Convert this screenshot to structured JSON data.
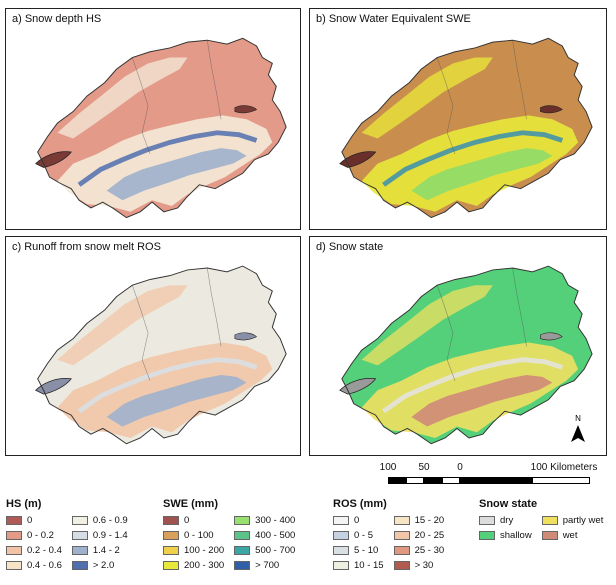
{
  "panels": [
    {
      "title": "a) Snow depth HS"
    },
    {
      "title": "b) Snow Water Equivalent SWE"
    },
    {
      "title": "c) Runoff from snow melt ROS"
    },
    {
      "title": "d) Snow state"
    }
  ],
  "north_arrow": {
    "label": "N"
  },
  "scalebar": {
    "labels": [
      "100",
      "50",
      "0",
      "100 Kilometers"
    ],
    "values_km": [
      100,
      50,
      0,
      100
    ]
  },
  "legends": {
    "hs": {
      "title": "HS (m)",
      "items": [
        {
          "label": "0",
          "color": "#b05a58"
        },
        {
          "label": "0 - 0.2",
          "color": "#e59a88"
        },
        {
          "label": "0.2 - 0.4",
          "color": "#f2c3a6"
        },
        {
          "label": "0.4 - 0.6",
          "color": "#f7e4c6"
        },
        {
          "label": "0.6 - 0.9",
          "color": "#f2f0e2"
        },
        {
          "label": "0.9 - 1.4",
          "color": "#d7dde6"
        },
        {
          "label": "1.4 - 2",
          "color": "#9fb1cc"
        },
        {
          "label": "> 2.0",
          "color": "#4f6fae"
        }
      ]
    },
    "swe": {
      "title": "SWE (mm)",
      "items": [
        {
          "label": "0",
          "color": "#a0524e"
        },
        {
          "label": "0 - 100",
          "color": "#d9a05a"
        },
        {
          "label": "100 - 200",
          "color": "#f0d048"
        },
        {
          "label": "200 - 300",
          "color": "#e8e83a"
        },
        {
          "label": "300 - 400",
          "color": "#98e070"
        },
        {
          "label": "400 - 500",
          "color": "#5cc48a"
        },
        {
          "label": "500 - 700",
          "color": "#3aa6a6"
        },
        {
          "label": "> 700",
          "color": "#2f5fa8"
        }
      ]
    },
    "ros": {
      "title": "ROS (mm)",
      "items": [
        {
          "label": "0",
          "color": "#f4f4f4"
        },
        {
          "label": "0 - 5",
          "color": "#c6d2e2"
        },
        {
          "label": "5 - 10",
          "color": "#d8e0e4"
        },
        {
          "label": "10 - 15",
          "color": "#eef0e0"
        },
        {
          "label": "15 - 20",
          "color": "#f7e6c6"
        },
        {
          "label": "20 - 25",
          "color": "#f2c6a8"
        },
        {
          "label": "25 - 30",
          "color": "#e09880"
        },
        {
          "label": "> 30",
          "color": "#b05a50"
        }
      ]
    },
    "state": {
      "title": "Snow state",
      "items": [
        {
          "label": "dry",
          "color": "#dcdcdc"
        },
        {
          "label": "shallow",
          "color": "#55d07a"
        },
        {
          "label": "partly wet",
          "color": "#f0e060"
        },
        {
          "label": "wet",
          "color": "#d08a78"
        }
      ]
    }
  },
  "map_colors": {
    "hs": {
      "base": "#e49a88",
      "mid": "#f4ead8",
      "high": "#9fb1cc",
      "peak": "#4f6fae",
      "lake": "#7a3a36"
    },
    "swe": {
      "base": "#c98e4e",
      "mid": "#e8e83a",
      "high": "#8edc6a",
      "peak": "#3a8fb0",
      "lake": "#6a2f2a"
    },
    "ros": {
      "base": "#eceae0",
      "mid": "#f2c6a8",
      "high": "#9fb1cc",
      "peak": "#d8e0e8",
      "lake": "#8a8fa8"
    },
    "state": {
      "base": "#55d07a",
      "mid": "#f0e060",
      "high": "#d08a78",
      "peak": "#e4e4e4",
      "lake": "#9a9a9a"
    }
  }
}
